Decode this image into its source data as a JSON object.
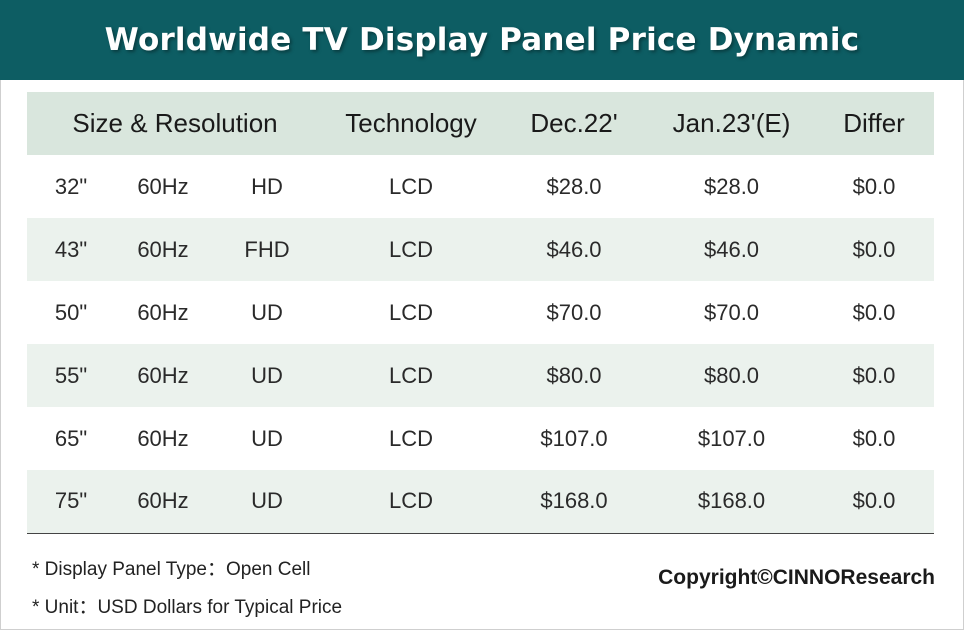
{
  "title": "Worldwide TV Display Panel Price Dynamic",
  "colors": {
    "header_bg": "#0d5d63",
    "table_header_bg": "#d9e6dd",
    "alt_row_bg": "#ebf2ed"
  },
  "chart_data": {
    "type": "table",
    "title": "Worldwide TV Display Panel Price Dynamic",
    "headers": [
      "Size & Resolution",
      "Technology",
      "Dec.22'",
      "Jan.23'(E)",
      "Differ"
    ],
    "rows": [
      {
        "size": "32\"",
        "refresh": "60Hz",
        "resolution": "HD",
        "technology": "LCD",
        "dec22": "$28.0",
        "jan23": "$28.0",
        "differ": "$0.0"
      },
      {
        "size": "43\"",
        "refresh": "60Hz",
        "resolution": "FHD",
        "technology": "LCD",
        "dec22": "$46.0",
        "jan23": "$46.0",
        "differ": "$0.0"
      },
      {
        "size": "50\"",
        "refresh": "60Hz",
        "resolution": "UD",
        "technology": "LCD",
        "dec22": "$70.0",
        "jan23": "$70.0",
        "differ": "$0.0"
      },
      {
        "size": "55\"",
        "refresh": "60Hz",
        "resolution": "UD",
        "technology": "LCD",
        "dec22": "$80.0",
        "jan23": "$80.0",
        "differ": "$0.0"
      },
      {
        "size": "65\"",
        "refresh": "60Hz",
        "resolution": "UD",
        "technology": "LCD",
        "dec22": "$107.0",
        "jan23": "$107.0",
        "differ": "$0.0"
      },
      {
        "size": "75\"",
        "refresh": "60Hz",
        "resolution": "UD",
        "technology": "LCD",
        "dec22": "$168.0",
        "jan23": "$168.0",
        "differ": "$0.0"
      }
    ]
  },
  "notes": [
    "* Display Panel Type：Open Cell",
    "* Unit：USD Dollars for Typical Price"
  ],
  "copyright": "Copyright©CINNOResearch"
}
